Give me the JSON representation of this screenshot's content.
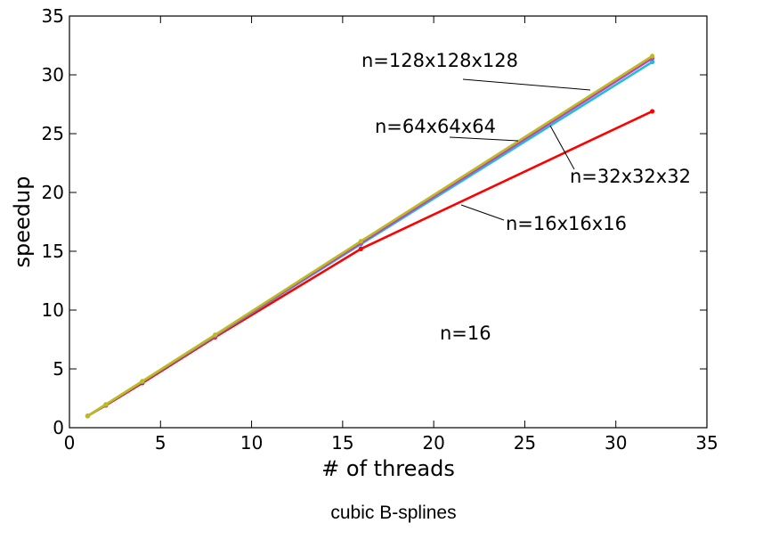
{
  "chart_data": {
    "type": "line",
    "xlabel": "# of threads",
    "ylabel": "speedup",
    "caption": "cubic B-splines",
    "xlim": [
      0,
      35
    ],
    "ylim": [
      0,
      35
    ],
    "xticks": [
      0,
      5,
      10,
      15,
      20,
      25,
      30,
      35
    ],
    "yticks": [
      0,
      5,
      10,
      15,
      20,
      25,
      30,
      35
    ],
    "grid": false,
    "x": [
      1,
      2,
      4,
      8,
      16,
      32
    ],
    "series": [
      {
        "name": "n=16x16x16",
        "color": "#ff0000",
        "values": [
          1.0,
          1.9,
          3.8,
          7.7,
          15.2,
          26.9
        ]
      },
      {
        "name": "n=32x32x32",
        "color": "#1fbfd8",
        "values": [
          1.0,
          1.95,
          3.9,
          7.8,
          15.6,
          31.1
        ]
      },
      {
        "name": "n=64x64x64",
        "color": "#c040c0",
        "values": [
          1.0,
          1.97,
          3.93,
          7.85,
          15.7,
          31.4
        ]
      },
      {
        "name": "n=128x128x128",
        "color": "#bcbc1c",
        "values": [
          1.0,
          1.98,
          3.95,
          7.9,
          15.85,
          31.6
        ]
      }
    ],
    "annotations": [
      {
        "text": "n=128x128x128",
        "series": 3
      },
      {
        "text": "n=64x64x64",
        "series": 2
      },
      {
        "text": "n=32x32x32",
        "series": 1
      },
      {
        "text": "n=16x16x16",
        "series": 0
      },
      {
        "text": "n=16",
        "series": null
      }
    ]
  }
}
